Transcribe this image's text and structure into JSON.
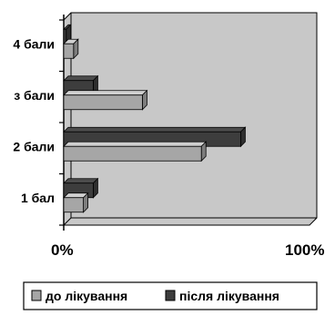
{
  "chart_data": {
    "type": "bar",
    "orientation": "horizontal",
    "style": "3d",
    "categories": [
      "1 бал",
      "2 бали",
      "з бали",
      "4 бали"
    ],
    "series": [
      {
        "name": "до лікування",
        "values": [
          8,
          56,
          32,
          4
        ],
        "color": "#a6a6a6"
      },
      {
        "name": "після лікування",
        "values": [
          12,
          72,
          12,
          1
        ],
        "color": "#3d3d3d"
      }
    ],
    "xlim": [
      0,
      100
    ],
    "xticks": [
      "0%",
      "100%"
    ],
    "legend_position": "bottom",
    "plot_background": "#c8c8c8"
  }
}
